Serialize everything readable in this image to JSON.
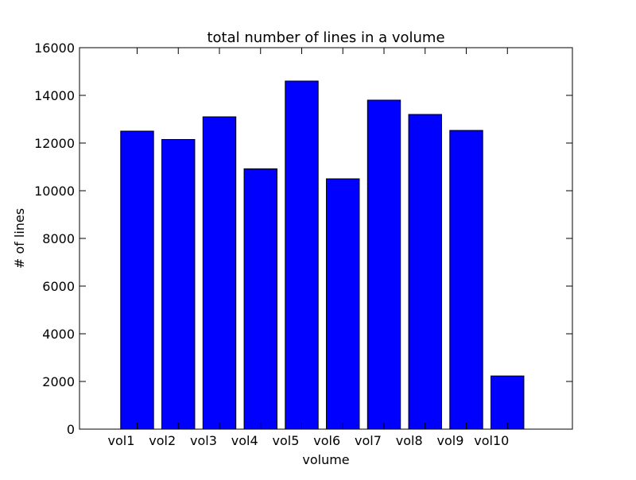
{
  "chart_data": {
    "type": "bar",
    "title": "total number of lines in a volume",
    "xlabel": "volume",
    "ylabel": "# of lines",
    "categories": [
      "vol1",
      "vol2",
      "vol3",
      "vol4",
      "vol5",
      "vol6",
      "vol7",
      "vol8",
      "vol9",
      "vol10"
    ],
    "values": [
      12500,
      12150,
      13100,
      10920,
      14600,
      10500,
      13800,
      13200,
      12530,
      2230
    ],
    "ylim": [
      0,
      16000
    ],
    "yticks": [
      0,
      2000,
      4000,
      6000,
      8000,
      10000,
      12000,
      14000,
      16000
    ],
    "grid": false,
    "bar_color": "#0000ff",
    "edge_color": "#000000"
  }
}
